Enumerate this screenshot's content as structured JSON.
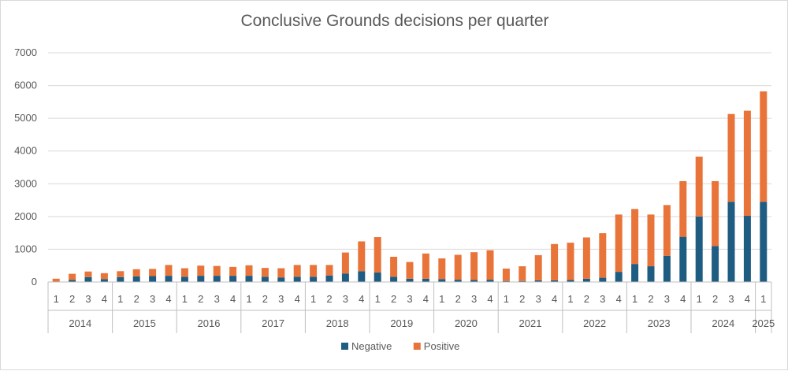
{
  "chart_data": {
    "type": "bar",
    "stacked": true,
    "title": "Conclusive Grounds decisions per quarter",
    "xlabel": "",
    "ylabel": "",
    "ylim": [
      0,
      7000
    ],
    "yticks": [
      0,
      1000,
      2000,
      3000,
      4000,
      5000,
      6000,
      7000
    ],
    "grid": true,
    "legend_position": "bottom",
    "categories": [
      {
        "year": "2014",
        "quarter": "1"
      },
      {
        "year": "2014",
        "quarter": "2"
      },
      {
        "year": "2014",
        "quarter": "3"
      },
      {
        "year": "2014",
        "quarter": "4"
      },
      {
        "year": "2015",
        "quarter": "1"
      },
      {
        "year": "2015",
        "quarter": "2"
      },
      {
        "year": "2015",
        "quarter": "3"
      },
      {
        "year": "2015",
        "quarter": "4"
      },
      {
        "year": "2016",
        "quarter": "1"
      },
      {
        "year": "2016",
        "quarter": "2"
      },
      {
        "year": "2016",
        "quarter": "3"
      },
      {
        "year": "2016",
        "quarter": "4"
      },
      {
        "year": "2017",
        "quarter": "1"
      },
      {
        "year": "2017",
        "quarter": "2"
      },
      {
        "year": "2017",
        "quarter": "3"
      },
      {
        "year": "2017",
        "quarter": "4"
      },
      {
        "year": "2018",
        "quarter": "1"
      },
      {
        "year": "2018",
        "quarter": "2"
      },
      {
        "year": "2018",
        "quarter": "3"
      },
      {
        "year": "2018",
        "quarter": "4"
      },
      {
        "year": "2019",
        "quarter": "1"
      },
      {
        "year": "2019",
        "quarter": "2"
      },
      {
        "year": "2019",
        "quarter": "3"
      },
      {
        "year": "2019",
        "quarter": "4"
      },
      {
        "year": "2020",
        "quarter": "1"
      },
      {
        "year": "2020",
        "quarter": "2"
      },
      {
        "year": "2020",
        "quarter": "3"
      },
      {
        "year": "2020",
        "quarter": "4"
      },
      {
        "year": "2021",
        "quarter": "1"
      },
      {
        "year": "2021",
        "quarter": "2"
      },
      {
        "year": "2021",
        "quarter": "3"
      },
      {
        "year": "2021",
        "quarter": "4"
      },
      {
        "year": "2022",
        "quarter": "1"
      },
      {
        "year": "2022",
        "quarter": "2"
      },
      {
        "year": "2022",
        "quarter": "3"
      },
      {
        "year": "2022",
        "quarter": "4"
      },
      {
        "year": "2023",
        "quarter": "1"
      },
      {
        "year": "2023",
        "quarter": "2"
      },
      {
        "year": "2023",
        "quarter": "3"
      },
      {
        "year": "2023",
        "quarter": "4"
      },
      {
        "year": "2024",
        "quarter": "1"
      },
      {
        "year": "2024",
        "quarter": "2"
      },
      {
        "year": "2024",
        "quarter": "3"
      },
      {
        "year": "2024",
        "quarter": "4"
      },
      {
        "year": "2025",
        "quarter": "1"
      }
    ],
    "years": [
      "2014",
      "2015",
      "2016",
      "2017",
      "2018",
      "2019",
      "2020",
      "2021",
      "2022",
      "2023",
      "2024",
      "2025"
    ],
    "series": [
      {
        "name": "Negative",
        "color": "#1f5c82",
        "values": [
          10,
          60,
          150,
          90,
          150,
          170,
          180,
          190,
          160,
          190,
          190,
          190,
          190,
          160,
          140,
          160,
          160,
          200,
          260,
          330,
          290,
          160,
          100,
          100,
          90,
          70,
          60,
          70,
          30,
          30,
          50,
          50,
          60,
          100,
          130,
          310,
          550,
          480,
          800,
          1380,
          2000,
          1100,
          2450,
          2020,
          2450
        ]
      },
      {
        "name": "Positive",
        "color": "#e9743a",
        "values": [
          90,
          190,
          170,
          180,
          180,
          220,
          220,
          330,
          260,
          310,
          300,
          270,
          320,
          270,
          280,
          360,
          360,
          320,
          640,
          910,
          1080,
          610,
          510,
          770,
          630,
          760,
          850,
          900,
          380,
          450,
          770,
          1110,
          1140,
          1260,
          1360,
          1750,
          1680,
          1580,
          1550,
          1700,
          1830,
          1980,
          2680,
          3210,
          3370
        ]
      }
    ]
  }
}
